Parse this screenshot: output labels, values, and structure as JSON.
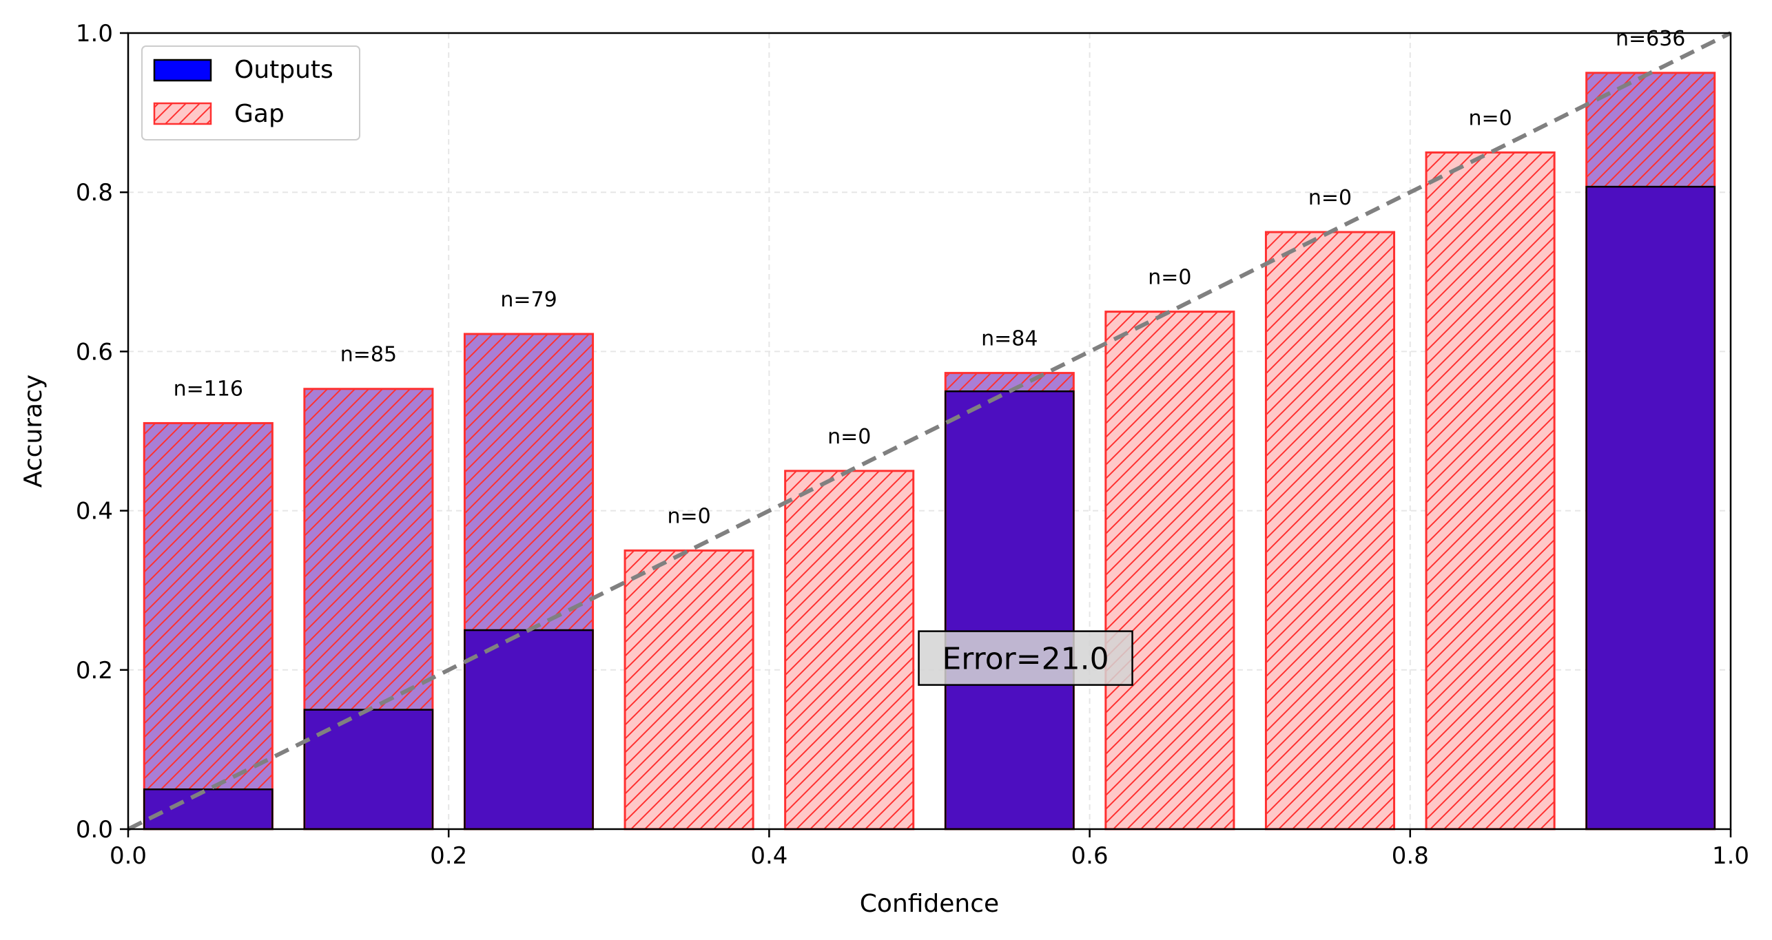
{
  "chart_data": {
    "type": "bar",
    "title": "",
    "xlabel": "Confidence",
    "ylabel": "Accuracy",
    "xlim": [
      0.0,
      1.0
    ],
    "ylim": [
      0.0,
      1.0
    ],
    "xticks": [
      "0.0",
      "0.2",
      "0.4",
      "0.6",
      "0.8",
      "1.0"
    ],
    "yticks": [
      "0.0",
      "0.2",
      "0.4",
      "0.6",
      "0.8",
      "1.0"
    ],
    "grid": true,
    "legend": {
      "position": "top-left",
      "entries": [
        {
          "name": "Outputs",
          "color": "#0000ff"
        },
        {
          "name": "Gap",
          "color": "#ffc8c8",
          "hatch": "/",
          "edge": "#ff3030"
        }
      ]
    },
    "bin_width": 0.1,
    "bins": [
      {
        "center": 0.05,
        "output": 0.05,
        "expected": 0.51,
        "count_label": "n=116"
      },
      {
        "center": 0.15,
        "output": 0.15,
        "expected": 0.553,
        "count_label": "n=85"
      },
      {
        "center": 0.25,
        "output": 0.25,
        "expected": 0.622,
        "count_label": "n=79"
      },
      {
        "center": 0.35,
        "output": 0.0,
        "expected": 0.35,
        "count_label": "n=0"
      },
      {
        "center": 0.45,
        "output": 0.0,
        "expected": 0.45,
        "count_label": "n=0"
      },
      {
        "center": 0.55,
        "output": 0.55,
        "expected": 0.573,
        "count_label": "n=84"
      },
      {
        "center": 0.65,
        "output": 0.0,
        "expected": 0.65,
        "count_label": "n=0"
      },
      {
        "center": 0.75,
        "output": 0.0,
        "expected": 0.75,
        "count_label": "n=0"
      },
      {
        "center": 0.85,
        "output": 0.0,
        "expected": 0.85,
        "count_label": "n=0"
      },
      {
        "center": 0.95,
        "output": 0.807,
        "expected": 0.95,
        "count_label": "n=636"
      }
    ],
    "diagonal": {
      "from": [
        0,
        0
      ],
      "to": [
        1,
        1
      ],
      "color": "#808080",
      "style": "dashed"
    },
    "annotation": {
      "text": "Error=21.0",
      "x": 0.56,
      "y": 0.214
    },
    "colors": {
      "outputs": "#0000ff",
      "gap_fill": "#ffc8c8",
      "gap_edge": "#ff3030",
      "overlap": "#a97ed5"
    }
  }
}
